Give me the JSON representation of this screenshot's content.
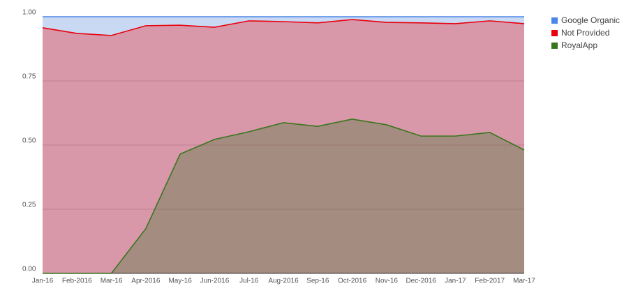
{
  "chart_data": {
    "type": "stacked-area",
    "categories": [
      "Jan-16",
      "Feb-2016",
      "Mar-16",
      "Apr-2016",
      "May-16",
      "Jun-2016",
      "Jul-16",
      "Aug-2016",
      "Sep-16",
      "Oct-2016",
      "Nov-16",
      "Dec-2016",
      "Jan-17",
      "Feb-2017",
      "Mar-17"
    ],
    "series": [
      {
        "name": "RoyalApp",
        "color": "#38761d",
        "fill": "#a58c80",
        "values": [
          0,
          0,
          0,
          0.174,
          0.465,
          0.522,
          0.552,
          0.587,
          0.573,
          0.601,
          0.579,
          0.535,
          0.535,
          0.549,
          0.481
        ]
      },
      {
        "name": "Not Provided",
        "color": "#e8000b",
        "fill": "#d898aa",
        "values": [
          0.957,
          0.935,
          0.927,
          0.791,
          0.502,
          0.437,
          0.432,
          0.394,
          0.403,
          0.388,
          0.399,
          0.441,
          0.438,
          0.435,
          0.492
        ]
      },
      {
        "name": "Google Organic",
        "color": "#4a86e8",
        "fill": "#c9d8f3",
        "values": [
          0.043,
          0.065,
          0.073,
          0.035,
          0.033,
          0.041,
          0.016,
          0.019,
          0.024,
          0.011,
          0.022,
          0.024,
          0.027,
          0.016,
          0.027
        ]
      }
    ],
    "ylim": [
      0,
      1
    ],
    "yticks": [
      {
        "value": 0,
        "label": "0.00"
      },
      {
        "value": 0.25,
        "label": "0.25"
      },
      {
        "value": 0.5,
        "label": "0.50"
      },
      {
        "value": 0.75,
        "label": "0.75"
      },
      {
        "value": 1,
        "label": "1.00"
      }
    ],
    "grid": true,
    "legend": "top-right"
  }
}
